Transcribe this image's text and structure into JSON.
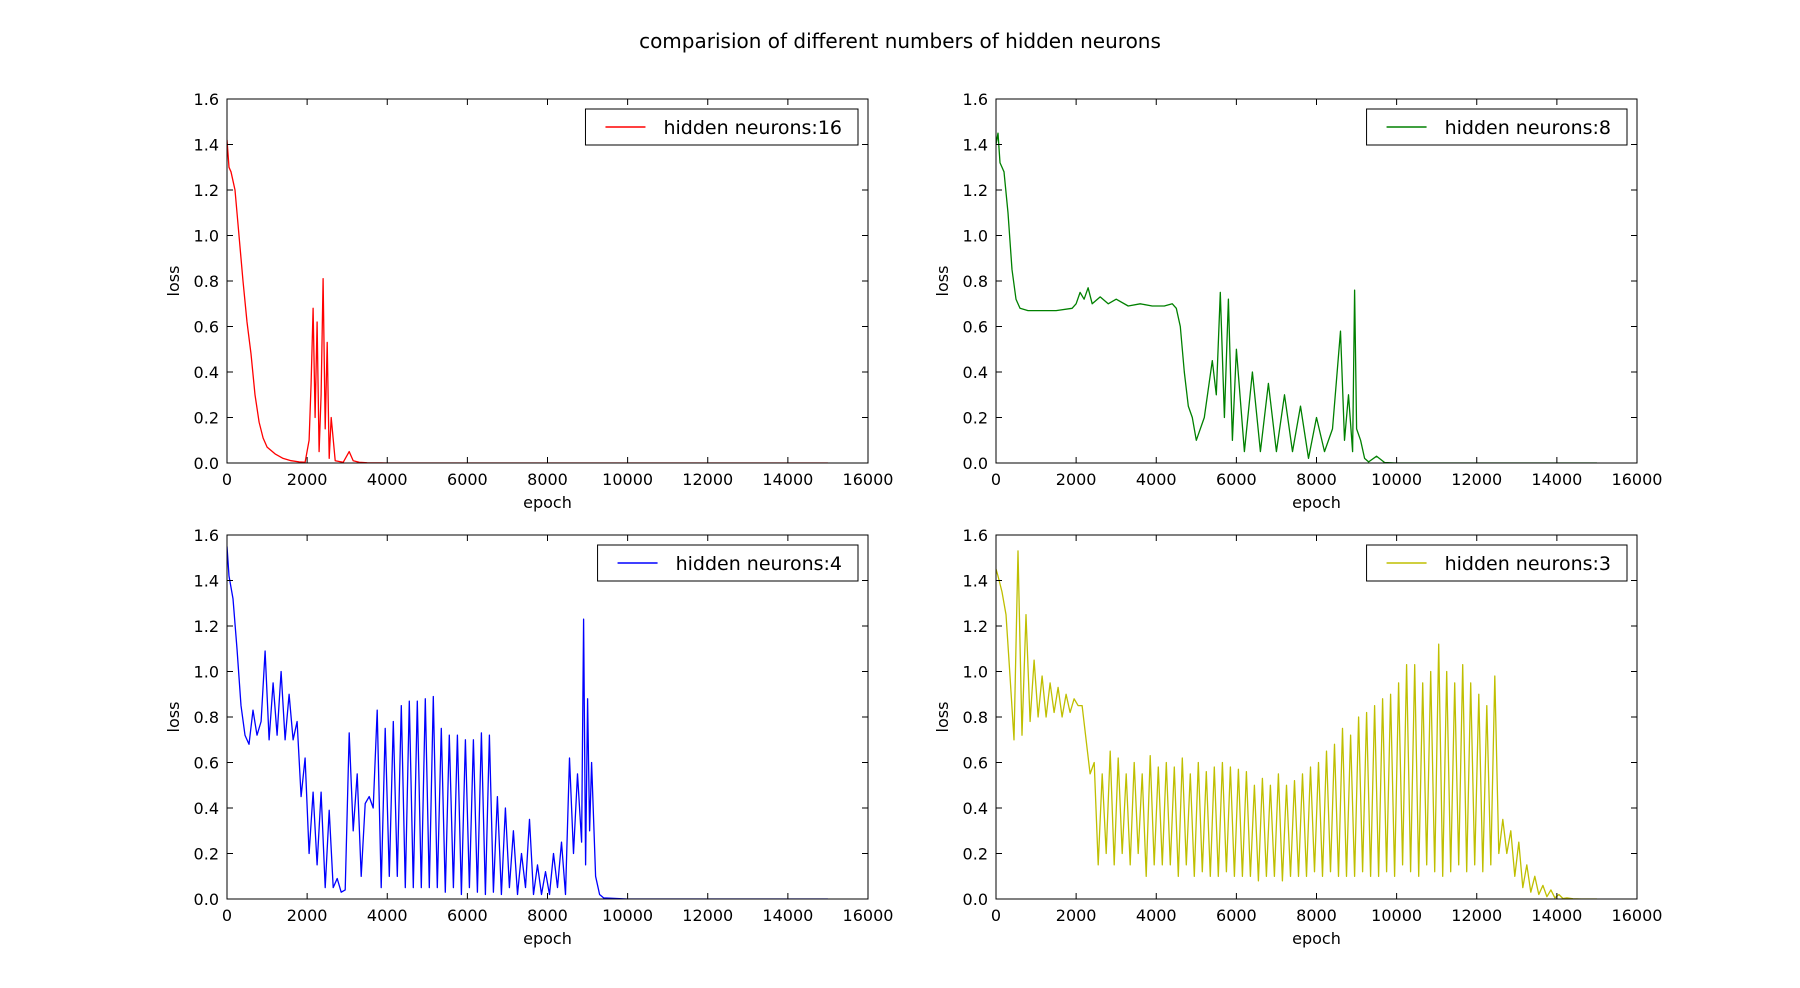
{
  "figure": {
    "suptitle": "comparision of different numbers of hidden neurons"
  },
  "chart_data": [
    {
      "type": "line",
      "xlabel": "epoch",
      "ylabel": "loss",
      "xlim": [
        0,
        16000
      ],
      "ylim": [
        0,
        1.6
      ],
      "xticks": [
        0,
        2000,
        4000,
        6000,
        8000,
        10000,
        12000,
        14000,
        16000
      ],
      "yticks": [
        0.0,
        0.2,
        0.4,
        0.6,
        0.8,
        1.0,
        1.2,
        1.4,
        1.6
      ],
      "legend_position": "top-right",
      "grid": false,
      "series": [
        {
          "name": "hidden neurons:16",
          "color": "#ff0000",
          "x": [
            0,
            50,
            100,
            200,
            300,
            400,
            500,
            600,
            700,
            800,
            900,
            1000,
            1200,
            1400,
            1600,
            1800,
            1950,
            2050,
            2100,
            2150,
            2200,
            2250,
            2300,
            2350,
            2400,
            2450,
            2500,
            2550,
            2600,
            2700,
            2900,
            3050,
            3150,
            3300,
            3500,
            4000,
            15000
          ],
          "y": [
            1.42,
            1.3,
            1.28,
            1.2,
            1.0,
            0.8,
            0.62,
            0.48,
            0.3,
            0.18,
            0.11,
            0.07,
            0.04,
            0.02,
            0.01,
            0.005,
            0.003,
            0.1,
            0.35,
            0.68,
            0.2,
            0.62,
            0.05,
            0.3,
            0.81,
            0.15,
            0.53,
            0.02,
            0.2,
            0.01,
            0.003,
            0.05,
            0.01,
            0.003,
            0.001,
            0.0,
            0.0
          ]
        }
      ]
    },
    {
      "type": "line",
      "xlabel": "epoch",
      "ylabel": "loss",
      "xlim": [
        0,
        16000
      ],
      "ylim": [
        0,
        1.6
      ],
      "xticks": [
        0,
        2000,
        4000,
        6000,
        8000,
        10000,
        12000,
        14000,
        16000
      ],
      "yticks": [
        0.0,
        0.2,
        0.4,
        0.6,
        0.8,
        1.0,
        1.2,
        1.4,
        1.6
      ],
      "legend_position": "top-right",
      "grid": false,
      "series": [
        {
          "name": "hidden neurons:8",
          "color": "#008000",
          "x": [
            0,
            50,
            100,
            150,
            200,
            300,
            400,
            500,
            600,
            800,
            1000,
            1500,
            1900,
            2000,
            2100,
            2200,
            2300,
            2400,
            2600,
            2800,
            3000,
            3300,
            3600,
            3900,
            4200,
            4400,
            4500,
            4600,
            4700,
            4800,
            4900,
            5000,
            5200,
            5400,
            5500,
            5600,
            5700,
            5800,
            5900,
            6000,
            6200,
            6400,
            6600,
            6800,
            7000,
            7200,
            7400,
            7600,
            7800,
            8000,
            8200,
            8400,
            8600,
            8700,
            8800,
            8900,
            8950,
            9000,
            9100,
            9200,
            9300,
            9500,
            9700,
            10000,
            15000
          ],
          "y": [
            1.4,
            1.45,
            1.32,
            1.3,
            1.28,
            1.1,
            0.85,
            0.72,
            0.68,
            0.67,
            0.67,
            0.67,
            0.68,
            0.7,
            0.75,
            0.72,
            0.77,
            0.7,
            0.73,
            0.7,
            0.72,
            0.69,
            0.7,
            0.69,
            0.69,
            0.7,
            0.68,
            0.6,
            0.4,
            0.25,
            0.2,
            0.1,
            0.2,
            0.45,
            0.3,
            0.75,
            0.2,
            0.72,
            0.1,
            0.5,
            0.05,
            0.4,
            0.05,
            0.35,
            0.05,
            0.3,
            0.05,
            0.25,
            0.02,
            0.2,
            0.05,
            0.15,
            0.58,
            0.1,
            0.3,
            0.05,
            0.76,
            0.15,
            0.1,
            0.02,
            0.005,
            0.03,
            0.002,
            0.0,
            0.0
          ]
        }
      ]
    },
    {
      "type": "line",
      "xlabel": "epoch",
      "ylabel": "loss",
      "xlim": [
        0,
        16000
      ],
      "ylim": [
        0,
        1.6
      ],
      "xticks": [
        0,
        2000,
        4000,
        6000,
        8000,
        10000,
        12000,
        14000,
        16000
      ],
      "yticks": [
        0.0,
        0.2,
        0.4,
        0.6,
        0.8,
        1.0,
        1.2,
        1.4,
        1.6
      ],
      "legend_position": "top-right",
      "grid": false,
      "series": [
        {
          "name": "hidden neurons:4",
          "color": "#0000ff",
          "x": [
            0,
            50,
            150,
            250,
            350,
            450,
            550,
            650,
            750,
            850,
            950,
            1050,
            1150,
            1250,
            1350,
            1450,
            1550,
            1650,
            1750,
            1850,
            1950,
            2050,
            2150,
            2250,
            2350,
            2450,
            2550,
            2650,
            2750,
            2850,
            2950,
            3050,
            3150,
            3250,
            3350,
            3450,
            3550,
            3650,
            3750,
            3850,
            3950,
            4050,
            4150,
            4250,
            4350,
            4450,
            4550,
            4650,
            4750,
            4850,
            4950,
            5050,
            5150,
            5250,
            5350,
            5450,
            5550,
            5650,
            5750,
            5850,
            5950,
            6050,
            6150,
            6250,
            6350,
            6450,
            6550,
            6650,
            6750,
            6850,
            6950,
            7050,
            7150,
            7250,
            7350,
            7450,
            7550,
            7650,
            7750,
            7850,
            7950,
            8050,
            8150,
            8250,
            8350,
            8450,
            8550,
            8650,
            8750,
            8850,
            8900,
            8950,
            9000,
            9050,
            9100,
            9200,
            9300,
            9400,
            10000,
            15000
          ],
          "y": [
            1.55,
            1.42,
            1.32,
            1.1,
            0.85,
            0.72,
            0.68,
            0.83,
            0.72,
            0.78,
            1.09,
            0.7,
            0.95,
            0.72,
            1.0,
            0.7,
            0.9,
            0.7,
            0.78,
            0.45,
            0.62,
            0.2,
            0.47,
            0.15,
            0.47,
            0.05,
            0.39,
            0.05,
            0.09,
            0.03,
            0.04,
            0.73,
            0.3,
            0.55,
            0.1,
            0.42,
            0.45,
            0.4,
            0.83,
            0.05,
            0.75,
            0.1,
            0.78,
            0.1,
            0.85,
            0.05,
            0.87,
            0.05,
            0.87,
            0.05,
            0.88,
            0.05,
            0.89,
            0.05,
            0.75,
            0.03,
            0.72,
            0.05,
            0.72,
            0.02,
            0.7,
            0.05,
            0.7,
            0.03,
            0.73,
            0.02,
            0.72,
            0.03,
            0.45,
            0.02,
            0.4,
            0.05,
            0.3,
            0.02,
            0.2,
            0.05,
            0.35,
            0.02,
            0.15,
            0.02,
            0.12,
            0.02,
            0.2,
            0.05,
            0.25,
            0.02,
            0.62,
            0.2,
            0.55,
            0.25,
            1.23,
            0.15,
            0.88,
            0.3,
            0.6,
            0.1,
            0.02,
            0.005,
            0.0,
            0.0
          ]
        }
      ]
    },
    {
      "type": "line",
      "xlabel": "epoch",
      "ylabel": "loss",
      "xlim": [
        0,
        16000
      ],
      "ylim": [
        0,
        1.6
      ],
      "xticks": [
        0,
        2000,
        4000,
        6000,
        8000,
        10000,
        12000,
        14000,
        16000
      ],
      "yticks": [
        0.0,
        0.2,
        0.4,
        0.6,
        0.8,
        1.0,
        1.2,
        1.4,
        1.6
      ],
      "legend_position": "top-right",
      "grid": false,
      "series": [
        {
          "name": "hidden neurons:3",
          "color": "#bfbf00",
          "x": [
            0,
            50,
            150,
            250,
            350,
            450,
            550,
            650,
            750,
            850,
            950,
            1050,
            1150,
            1250,
            1350,
            1450,
            1550,
            1650,
            1750,
            1850,
            1950,
            2050,
            2150,
            2250,
            2350,
            2450,
            2550,
            2650,
            2750,
            2850,
            2950,
            3050,
            3150,
            3250,
            3350,
            3450,
            3550,
            3650,
            3750,
            3850,
            3950,
            4050,
            4150,
            4250,
            4350,
            4450,
            4550,
            4650,
            4750,
            4850,
            4950,
            5050,
            5150,
            5250,
            5350,
            5450,
            5550,
            5650,
            5750,
            5850,
            5950,
            6050,
            6150,
            6250,
            6350,
            6450,
            6550,
            6650,
            6750,
            6850,
            6950,
            7050,
            7150,
            7250,
            7350,
            7450,
            7550,
            7650,
            7750,
            7850,
            7950,
            8050,
            8150,
            8250,
            8350,
            8450,
            8550,
            8650,
            8750,
            8850,
            8950,
            9050,
            9150,
            9250,
            9350,
            9450,
            9550,
            9650,
            9750,
            9850,
            9950,
            10050,
            10150,
            10250,
            10350,
            10450,
            10550,
            10650,
            10750,
            10850,
            10950,
            11050,
            11150,
            11250,
            11350,
            11450,
            11550,
            11650,
            11750,
            11850,
            11950,
            12050,
            12150,
            12250,
            12350,
            12450,
            12550,
            12650,
            12750,
            12850,
            12950,
            13050,
            13150,
            13250,
            13350,
            13450,
            13550,
            13650,
            13750,
            13850,
            13950,
            14050,
            14150,
            14250,
            14400,
            14600,
            15000
          ],
          "y": [
            1.45,
            1.42,
            1.35,
            1.25,
            0.98,
            0.7,
            1.53,
            0.72,
            1.25,
            0.78,
            1.05,
            0.8,
            0.98,
            0.8,
            0.95,
            0.82,
            0.93,
            0.8,
            0.9,
            0.82,
            0.88,
            0.85,
            0.85,
            0.7,
            0.55,
            0.6,
            0.15,
            0.55,
            0.2,
            0.65,
            0.15,
            0.62,
            0.2,
            0.55,
            0.15,
            0.6,
            0.2,
            0.55,
            0.1,
            0.63,
            0.15,
            0.58,
            0.15,
            0.6,
            0.15,
            0.58,
            0.1,
            0.62,
            0.15,
            0.55,
            0.1,
            0.6,
            0.12,
            0.56,
            0.1,
            0.58,
            0.1,
            0.6,
            0.12,
            0.58,
            0.1,
            0.57,
            0.1,
            0.56,
            0.1,
            0.5,
            0.08,
            0.53,
            0.1,
            0.5,
            0.1,
            0.55,
            0.08,
            0.5,
            0.1,
            0.52,
            0.1,
            0.55,
            0.1,
            0.58,
            0.12,
            0.6,
            0.1,
            0.65,
            0.12,
            0.68,
            0.1,
            0.75,
            0.1,
            0.72,
            0.1,
            0.8,
            0.12,
            0.82,
            0.1,
            0.85,
            0.1,
            0.88,
            0.12,
            0.9,
            0.1,
            0.95,
            0.15,
            1.03,
            0.12,
            1.03,
            0.1,
            0.95,
            0.15,
            1.0,
            0.12,
            1.12,
            0.1,
            1.0,
            0.12,
            0.95,
            0.15,
            1.03,
            0.12,
            0.95,
            0.15,
            0.9,
            0.12,
            0.85,
            0.15,
            0.98,
            0.2,
            0.35,
            0.2,
            0.3,
            0.1,
            0.25,
            0.05,
            0.15,
            0.03,
            0.1,
            0.02,
            0.06,
            0.01,
            0.04,
            0.005,
            0.02,
            0.002,
            0.005,
            0.001,
            0.0,
            0.0
          ]
        }
      ]
    }
  ]
}
